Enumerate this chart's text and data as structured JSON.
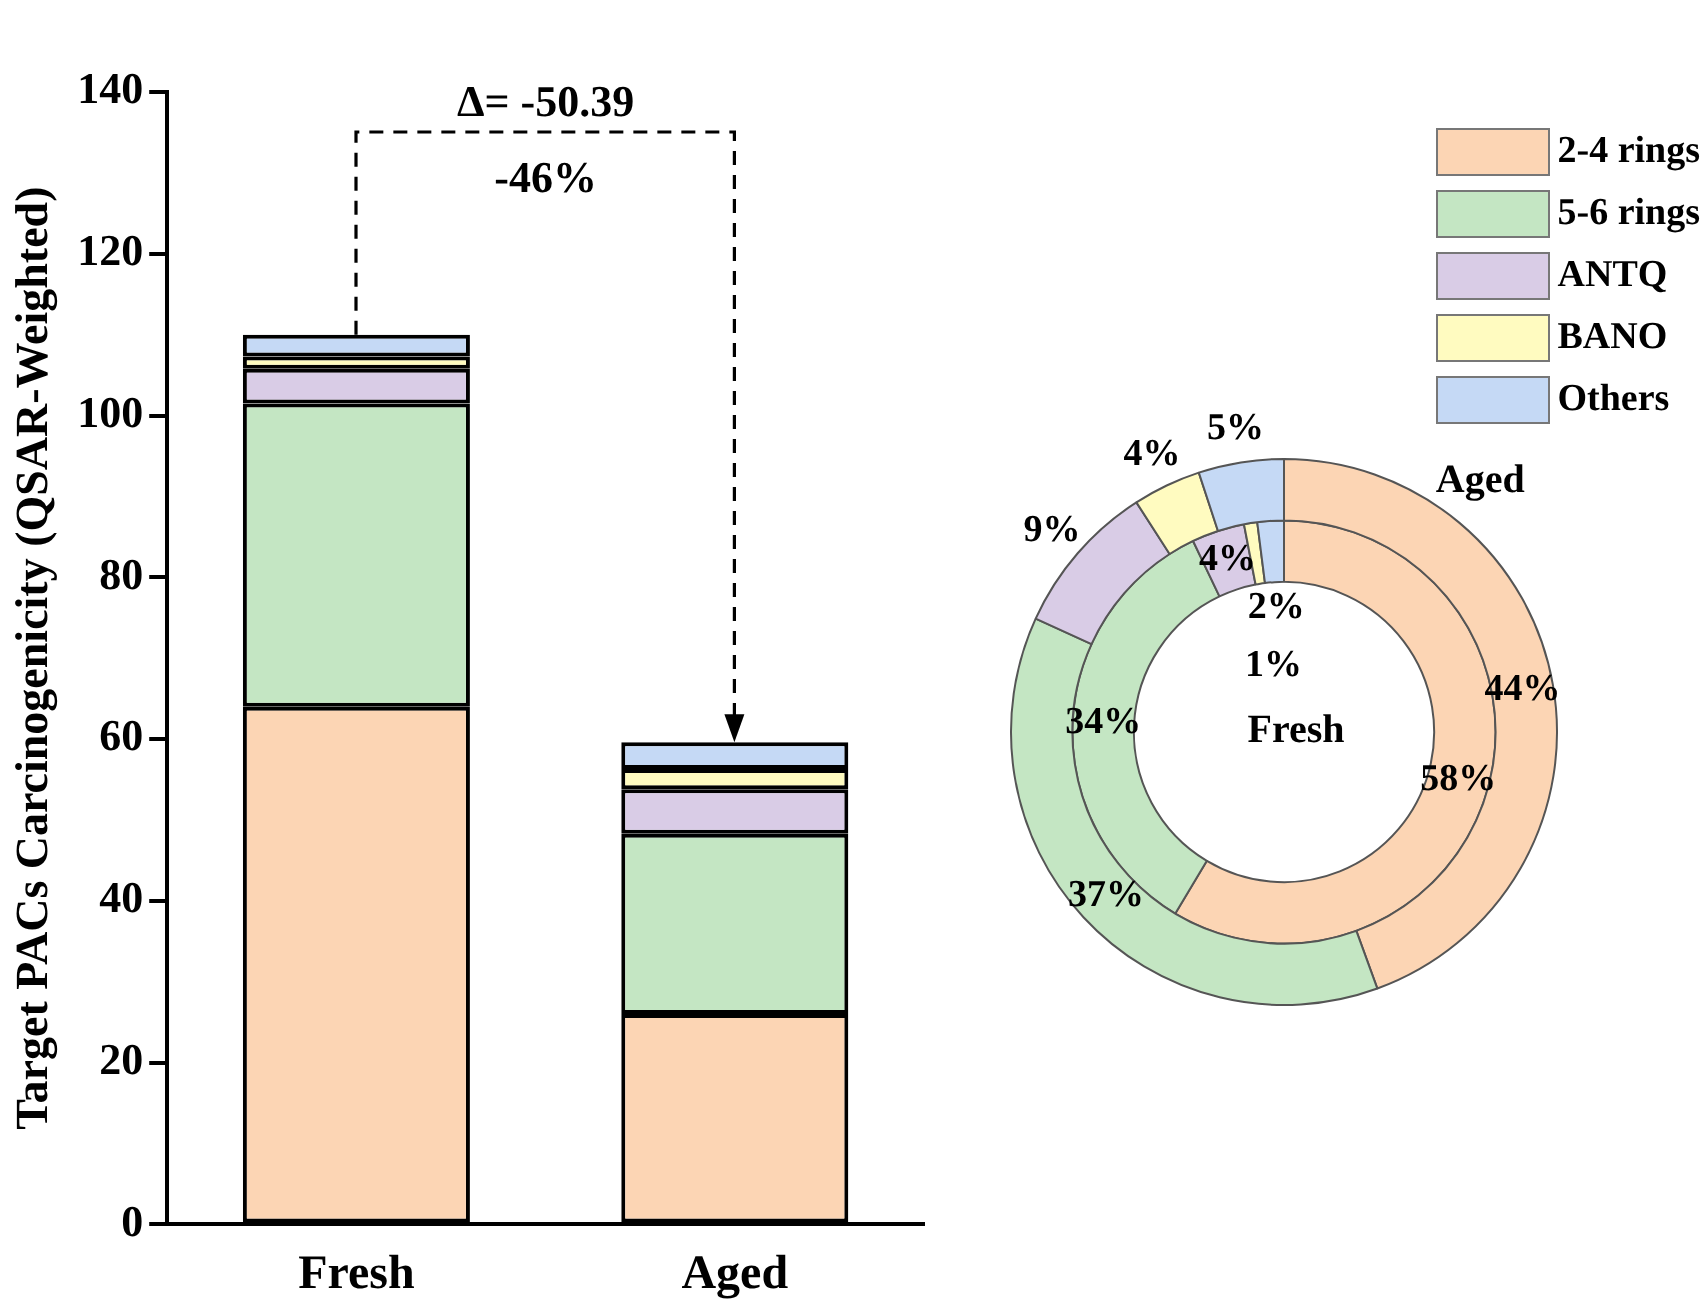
{
  "chart_data": [
    {
      "type": "bar",
      "stacked": true,
      "legend": "top right",
      "categories": [
        "Fresh",
        "Aged"
      ],
      "ylabel": "Target PACs Carcinogenicity (QSAR-Weighted)",
      "ylim": [
        0,
        140
      ],
      "yticks": [
        0,
        20,
        40,
        60,
        80,
        100,
        120,
        140
      ],
      "annotations": [
        "Δ= -50.39",
        "-46%"
      ],
      "series": [
        {
          "name": "2-4 rings",
          "color": "#fcd5b4",
          "values": [
            64,
            26
          ]
        },
        {
          "name": "5-6 rings",
          "color": "#c4e6c3",
          "values": [
            37.5,
            22.3
          ]
        },
        {
          "name": "ANTQ",
          "color": "#d9cce6",
          "values": [
            4.3,
            5.5
          ]
        },
        {
          "name": "BANO",
          "color": "#fffbc0",
          "values": [
            1.5,
            2.5
          ]
        },
        {
          "name": "Others",
          "color": "#c5d9f5",
          "values": [
            2.7,
            3.3
          ]
        }
      ]
    },
    {
      "type": "donut",
      "categories": [
        null,
        null,
        null,
        null,
        null
      ],
      "colors": [
        "#fcd5b4",
        "#c4e6c3",
        "#d9cce6",
        "#fffbc0",
        "#c5d9f5"
      ],
      "series": [
        {
          "name": "Fresh",
          "values": [
            58,
            34,
            4,
            1,
            2
          ],
          "value_labels": [
            "58%",
            "34%",
            "4%",
            "1%",
            "2%"
          ]
        },
        {
          "name": "Aged",
          "values": [
            44,
            37,
            9,
            4,
            5
          ],
          "value_labels": [
            "44%",
            "37%",
            "9%",
            "4%",
            "5%"
          ]
        }
      ]
    }
  ]
}
